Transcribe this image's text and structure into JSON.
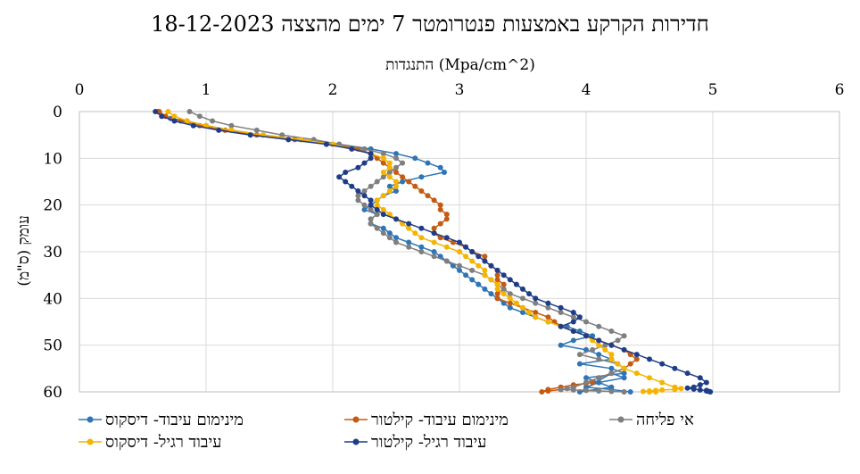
{
  "chart_data": {
    "type": "line",
    "title": "חדירות הקרקע באמצעות פנטרומטר 7 ימים מהצצה 18-12-2023",
    "xlabel": "התנגדות (Mpa/cm^2)",
    "ylabel": "עומק (ס\"מ)",
    "xlim": [
      0,
      6
    ],
    "ylim": [
      0,
      60
    ],
    "y_inverted": true,
    "x_axis_position": "top",
    "xticks": [
      "0",
      "1",
      "2",
      "3",
      "4",
      "5",
      "6"
    ],
    "yticks": [
      "0",
      "10",
      "20",
      "30",
      "40",
      "50",
      "60"
    ],
    "grid": true,
    "legend_position": "bottom",
    "series": [
      {
        "name": "מינימום עיבוד- דיסקוס",
        "color": "#2E75B6",
        "x": [
          0.62,
          0.65,
          0.72,
          0.85,
          1.0,
          1.2,
          1.45,
          1.75,
          2.05,
          2.3,
          2.5,
          2.65,
          2.75,
          2.85,
          2.88,
          2.7,
          2.55,
          2.45,
          2.5,
          2.4,
          2.35,
          2.3,
          2.25,
          2.35,
          2.3,
          2.3,
          2.4,
          2.45,
          2.5,
          2.6,
          2.7,
          2.8,
          2.85,
          2.9,
          2.95,
          3.0,
          3.05,
          3.1,
          3.15,
          3.2,
          3.25,
          3.3,
          3.35,
          3.4,
          3.5,
          3.6,
          3.7,
          3.85,
          3.95,
          4.05,
          3.9,
          3.8,
          4.0,
          4.1,
          4.2,
          3.95,
          4.2,
          4.3,
          4.0,
          4.1,
          4.2,
          3.95,
          4.2,
          4.3,
          4.1,
          4.0,
          4.2,
          4.35
        ],
        "y": [
          0,
          1,
          1.5,
          2,
          3,
          4,
          5,
          6,
          7,
          8,
          9,
          10,
          11,
          12,
          13,
          14,
          15,
          16,
          17,
          18,
          19,
          20,
          21,
          22,
          23,
          24,
          25,
          26,
          27,
          28,
          29,
          30,
          31,
          32,
          33,
          34,
          35,
          36,
          37,
          38,
          39,
          40,
          41,
          42,
          43,
          44,
          45,
          46,
          47,
          48,
          49,
          50,
          51,
          52,
          53,
          54,
          55,
          56,
          57,
          58,
          59,
          60,
          56,
          57,
          58,
          59,
          59.5,
          60
        ]
      },
      {
        "name": "מינימום עיבוד- קילטור",
        "color": "#C55A11",
        "x": [
          0.63,
          0.68,
          0.8,
          0.95,
          1.15,
          1.4,
          1.7,
          2.0,
          2.2,
          2.3,
          2.35,
          2.4,
          2.45,
          2.5,
          2.55,
          2.6,
          2.65,
          2.7,
          2.75,
          2.8,
          2.85,
          2.85,
          2.9,
          2.9,
          2.85,
          2.8,
          2.8,
          2.85,
          2.95,
          3.05,
          3.1,
          3.2,
          3.2,
          3.25,
          3.3,
          3.3,
          3.3,
          3.35,
          3.35,
          3.3,
          3.3,
          3.4,
          3.5,
          3.6,
          3.7,
          3.75,
          3.8,
          3.9,
          4.0,
          4.1,
          4.2,
          4.3,
          4.35,
          4.4,
          4.35,
          4.3,
          4.2,
          4.1,
          4.0,
          3.9,
          3.8,
          3.7,
          3.65,
          3.7,
          3.8,
          3.9,
          4.0,
          4.05
        ],
        "y": [
          0,
          1,
          2,
          3,
          4,
          5,
          6,
          7,
          8,
          9,
          10,
          11,
          12,
          13,
          14,
          15,
          16,
          17,
          18,
          19,
          20,
          21,
          22,
          23,
          24,
          25,
          26,
          27,
          28,
          29,
          30,
          31,
          32,
          33,
          34,
          35,
          36,
          37,
          38,
          39,
          40,
          41,
          42,
          43,
          44,
          45,
          46,
          47,
          48,
          49,
          50,
          51,
          52,
          53,
          54,
          55,
          56,
          57,
          58,
          59,
          59.5,
          59.8,
          60,
          59.5,
          59,
          58.5,
          58.2,
          58
        ]
      },
      {
        "name": "אי פליחה",
        "color": "#7F7F7F",
        "x": [
          0.87,
          0.95,
          1.05,
          1.2,
          1.4,
          1.6,
          1.85,
          2.05,
          2.25,
          2.4,
          2.5,
          2.55,
          2.5,
          2.45,
          2.4,
          2.35,
          2.3,
          2.25,
          2.2,
          2.2,
          2.25,
          2.3,
          2.35,
          2.3,
          2.3,
          2.35,
          2.4,
          2.45,
          2.5,
          2.6,
          2.7,
          2.8,
          2.9,
          3.0,
          3.1,
          3.2,
          3.25,
          3.3,
          3.35,
          3.4,
          3.5,
          3.6,
          3.7,
          3.8,
          3.9,
          4.0,
          4.1,
          4.2,
          4.3,
          4.25,
          4.15,
          4.05,
          3.95,
          4.1,
          4.25,
          4.3,
          4.2,
          4.1,
          4.0,
          3.9,
          3.85,
          3.8,
          3.9,
          4.0,
          4.1,
          4.2,
          4.3,
          4.3
        ],
        "y": [
          0,
          1,
          2,
          3,
          4,
          5,
          6,
          7,
          8,
          9,
          10,
          11,
          12,
          13,
          14,
          15,
          16,
          17,
          18,
          19,
          20,
          21,
          22,
          23,
          24,
          25,
          26,
          27,
          28,
          29,
          30,
          31,
          32,
          33,
          34,
          35,
          36,
          37,
          38,
          39,
          40,
          41,
          42,
          43,
          44,
          45,
          46,
          47,
          48,
          49,
          50,
          51,
          52,
          53,
          54,
          55,
          56,
          57,
          58,
          59,
          59.3,
          59.5,
          59.6,
          59.7,
          59.8,
          59.9,
          60,
          60
        ]
      },
      {
        "name": "עיבוד רגיל- דיסקוס",
        "color": "#F4B400",
        "x": [
          0.7,
          0.75,
          0.85,
          1.0,
          1.2,
          1.45,
          1.75,
          2.0,
          2.15,
          2.3,
          2.4,
          2.45,
          2.45,
          2.4,
          2.45,
          2.5,
          2.5,
          2.45,
          2.4,
          2.35,
          2.35,
          2.4,
          2.45,
          2.5,
          2.55,
          2.6,
          2.65,
          2.7,
          2.8,
          2.9,
          3.0,
          3.05,
          3.1,
          3.15,
          3.2,
          3.2,
          3.25,
          3.3,
          3.3,
          3.35,
          3.4,
          3.45,
          3.5,
          3.55,
          3.6,
          3.7,
          3.8,
          3.9,
          4.0,
          4.05,
          4.1,
          4.15,
          4.2,
          4.2,
          4.25,
          4.3,
          4.4,
          4.5,
          4.6,
          4.7,
          4.75,
          4.7,
          4.6,
          4.55,
          4.5,
          4.45,
          4.5,
          4.55
        ],
        "y": [
          0,
          1,
          2,
          3,
          4,
          5,
          6,
          7,
          8,
          9,
          10,
          11,
          12,
          13,
          14,
          15,
          16,
          17,
          18,
          19,
          20,
          21,
          22,
          23,
          24,
          25,
          26,
          27,
          28,
          29,
          30,
          31,
          32,
          33,
          34,
          35,
          36,
          37,
          38,
          39,
          40,
          41,
          42,
          43,
          44,
          45,
          46,
          47,
          48,
          49,
          50,
          51,
          52,
          53,
          54,
          55,
          56,
          57,
          58,
          59,
          59.3,
          59.5,
          59.6,
          59.7,
          59.8,
          59.9,
          60,
          60
        ]
      },
      {
        "name": "עיבוד רגיל- קילטור",
        "color": "#1F3C88",
        "x": [
          0.6,
          0.65,
          0.75,
          0.9,
          1.1,
          1.35,
          1.65,
          1.95,
          2.15,
          2.3,
          2.3,
          2.25,
          2.2,
          2.1,
          2.05,
          2.1,
          2.15,
          2.2,
          2.25,
          2.3,
          2.3,
          2.35,
          2.4,
          2.5,
          2.6,
          2.7,
          2.8,
          2.9,
          3.0,
          3.05,
          3.1,
          3.15,
          3.2,
          3.25,
          3.3,
          3.35,
          3.4,
          3.45,
          3.5,
          3.55,
          3.6,
          3.7,
          3.8,
          3.9,
          3.95,
          3.9,
          3.8,
          3.9,
          4.0,
          4.1,
          4.2,
          4.3,
          4.4,
          4.5,
          4.6,
          4.7,
          4.8,
          4.9,
          4.95,
          4.9,
          4.85,
          4.8,
          4.85,
          4.9,
          4.95,
          4.95,
          4.97,
          4.98
        ],
        "y": [
          0,
          1,
          2,
          3,
          4,
          5,
          6,
          7,
          8,
          9,
          10,
          11,
          12,
          13,
          14,
          15,
          16,
          17,
          18,
          19,
          20,
          21,
          22,
          23,
          24,
          25,
          26,
          27,
          28,
          29,
          30,
          31,
          32,
          33,
          34,
          35,
          36,
          37,
          38,
          39,
          40,
          41,
          42,
          43,
          44,
          45,
          46,
          47,
          48,
          49,
          50,
          51,
          52,
          53,
          54,
          55,
          56,
          57,
          58,
          58.5,
          59,
          59.2,
          59.4,
          59.6,
          59.7,
          59.8,
          59.9,
          60
        ]
      }
    ]
  }
}
